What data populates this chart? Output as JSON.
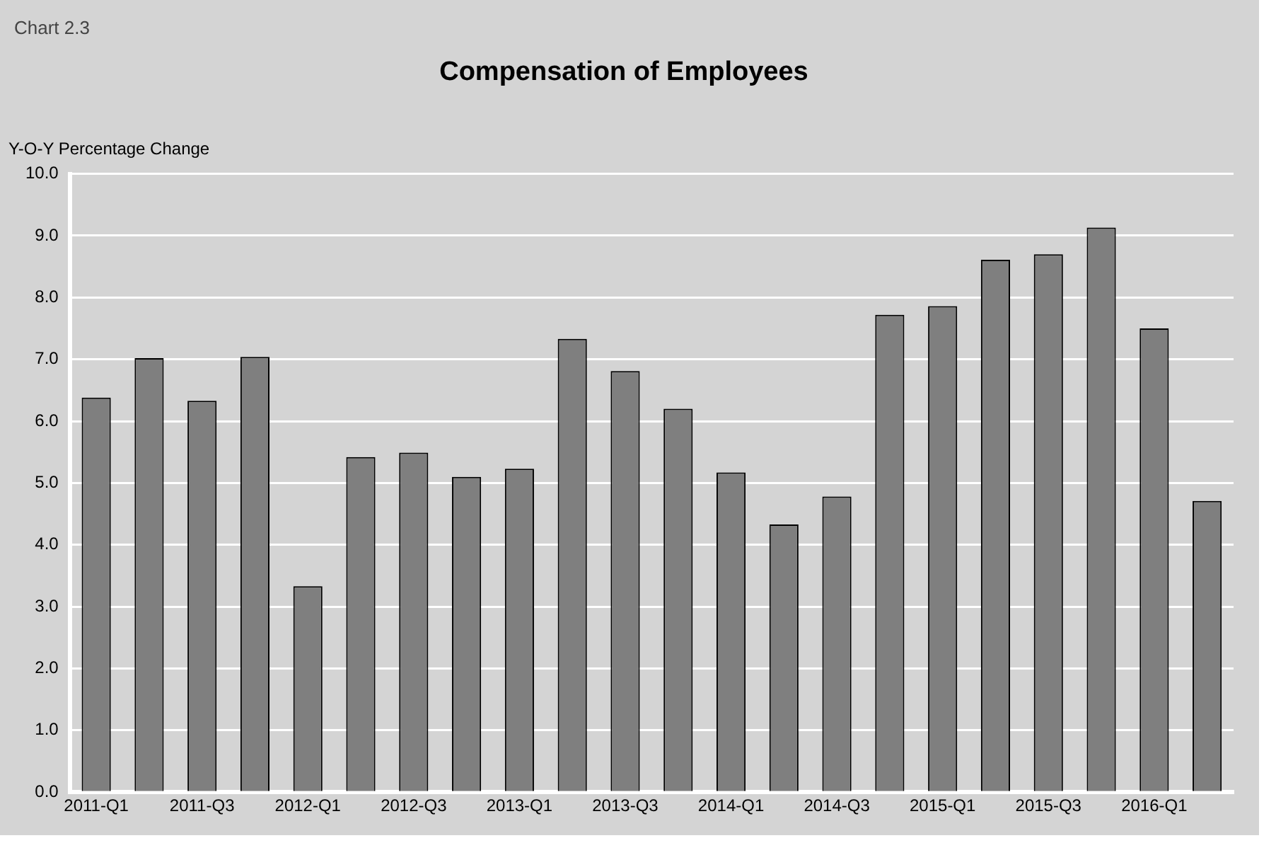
{
  "chart_data": {
    "type": "bar",
    "title": "Compensation of Employees",
    "ylabel": "Y-O-Y Percentage Change",
    "annotations": [
      "Chart 2.3"
    ],
    "categories": [
      "2011-Q1",
      null,
      "2011-Q3",
      null,
      "2012-Q1",
      null,
      "2012-Q3",
      null,
      "2013-Q1",
      null,
      "2013-Q3",
      null,
      "2014-Q1",
      null,
      "2014-Q3",
      null,
      "2015-Q1",
      null,
      "2015-Q3",
      null,
      "2016-Q1",
      null
    ],
    "values": [
      6.38,
      7.02,
      6.33,
      7.04,
      3.33,
      5.42,
      5.49,
      5.1,
      5.23,
      7.33,
      6.81,
      6.2,
      5.17,
      4.33,
      4.78,
      7.72,
      7.86,
      8.61,
      8.7,
      9.13,
      7.5,
      4.71
    ],
    "color": "#7f7f7f",
    "ylim": [
      0,
      10
    ],
    "yticks": [
      {
        "value": 0,
        "label": "0.0"
      },
      {
        "value": 1,
        "label": "1.0"
      },
      {
        "value": 2,
        "label": "2.0"
      },
      {
        "value": 3,
        "label": "3.0"
      },
      {
        "value": 4,
        "label": "4.0"
      },
      {
        "value": 5,
        "label": "5.0"
      },
      {
        "value": 6,
        "label": "6.0"
      },
      {
        "value": 7,
        "label": "7.0"
      },
      {
        "value": 8,
        "label": "8.0"
      },
      {
        "value": 9,
        "label": "9.0"
      },
      {
        "value": 10,
        "label": "10.0"
      }
    ],
    "grid": "y",
    "legend": false
  }
}
